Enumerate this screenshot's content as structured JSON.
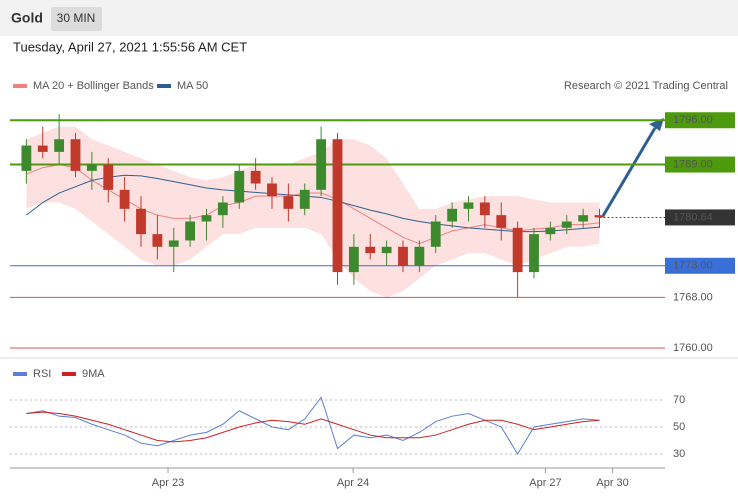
{
  "header": {
    "instrument": "Gold",
    "timeframe": "30 MIN",
    "timestamp": "Tuesday, April 27, 2021 1:55:56 AM CET"
  },
  "chart_data": [
    {
      "type": "candlestick",
      "legend": [
        {
          "name": "MA 20 + Bollinger Bands",
          "color": "#f08080"
        },
        {
          "name": "MA 50",
          "color": "#2f5f8f"
        }
      ],
      "credit": "Research © 2021 Trading Central",
      "x": [
        0,
        1,
        2,
        3,
        4,
        5,
        6,
        7,
        8,
        9,
        10,
        11,
        12,
        13,
        14,
        15,
        16,
        17,
        18,
        19,
        20,
        21,
        22,
        23,
        24,
        25,
        26,
        27,
        28,
        29,
        30,
        31,
        32,
        33,
        34,
        35
      ],
      "open": [
        1788,
        1792,
        1791,
        1793,
        1788,
        1789,
        1785,
        1782,
        1778,
        1776,
        1777,
        1780,
        1781,
        1783,
        1788,
        1786,
        1784,
        1782,
        1785,
        1793,
        1772,
        1776,
        1775,
        1776,
        1773,
        1776,
        1780,
        1782,
        1783,
        1781,
        1779,
        1772,
        1778,
        1779,
        1780,
        1781
      ],
      "high": [
        1793,
        1795,
        1797,
        1794,
        1791,
        1790,
        1787,
        1784,
        1781,
        1779,
        1781,
        1782,
        1784,
        1789,
        1790,
        1787,
        1786,
        1786,
        1795,
        1794,
        1778,
        1778,
        1777,
        1777,
        1777,
        1781,
        1783,
        1784,
        1784,
        1783,
        1780,
        1779,
        1780,
        1781,
        1782,
        1782
      ],
      "low": [
        1786,
        1790,
        1789,
        1787,
        1785,
        1783,
        1780,
        1776,
        1774,
        1772,
        1776,
        1777,
        1779,
        1782,
        1785,
        1782,
        1780,
        1781,
        1784,
        1770,
        1770,
        1774,
        1773,
        1772,
        1772,
        1775,
        1779,
        1780,
        1779,
        1777,
        1768,
        1771,
        1777,
        1778,
        1779,
        1779
      ],
      "close": [
        1792,
        1791,
        1793,
        1788,
        1789,
        1785,
        1782,
        1778,
        1776,
        1777,
        1780,
        1781,
        1783,
        1788,
        1786,
        1784,
        1782,
        1785,
        1793,
        1772,
        1776,
        1775,
        1776,
        1773,
        1776,
        1780,
        1782,
        1783,
        1781,
        1779,
        1772,
        1778,
        1779,
        1780,
        1781,
        1780.64
      ],
      "upper": [
        1793,
        1794,
        1795,
        1795,
        1793,
        1792,
        1791,
        1790,
        1789,
        1788,
        1787,
        1786.5,
        1787,
        1788,
        1789,
        1789,
        1789,
        1790,
        1791,
        1793,
        1793,
        1792,
        1790,
        1786,
        1782,
        1782,
        1783,
        1783.5,
        1784,
        1784,
        1784,
        1783.5,
        1783,
        1783,
        1783,
        1783
      ],
      "lower": [
        1782,
        1783,
        1783,
        1782,
        1780,
        1778,
        1776,
        1774,
        1773,
        1773,
        1774,
        1776,
        1778,
        1778,
        1779,
        1779,
        1779,
        1779,
        1778,
        1774,
        1771,
        1769,
        1768,
        1769,
        1771,
        1773,
        1774,
        1775,
        1775,
        1774,
        1773,
        1774,
        1775,
        1776,
        1776,
        1776.5
      ],
      "ma20": [
        1787.5,
        1788.5,
        1789,
        1788.5,
        1786.5,
        1785,
        1783.5,
        1782,
        1781,
        1780.5,
        1780.5,
        1781,
        1782.5,
        1783,
        1784,
        1784,
        1784,
        1784.5,
        1784.5,
        1783.5,
        1782,
        1780.5,
        1779,
        1777.5,
        1776.5,
        1777.5,
        1778.5,
        1779,
        1779.5,
        1779,
        1778.5,
        1778.8,
        1779,
        1779.5,
        1779.5,
        1779.8
      ],
      "ma50": [
        1781,
        1783,
        1784.5,
        1785.5,
        1786.5,
        1787,
        1787.3,
        1787.2,
        1786.8,
        1786.3,
        1785.8,
        1785.3,
        1785,
        1784.8,
        1784.6,
        1784.4,
        1784.2,
        1784,
        1783.8,
        1783.2,
        1782.5,
        1781.8,
        1781.2,
        1780.5,
        1780,
        1779.6,
        1779.3,
        1779,
        1778.8,
        1778.6,
        1778.4,
        1778.4,
        1778.5,
        1778.7,
        1778.9,
        1779.1
      ],
      "xlim": [
        -1,
        39
      ],
      "ylim": [
        1758.9,
        1799.2
      ],
      "yticks": [
        {
          "value": 1796,
          "label": "1796.00"
        },
        {
          "value": 1789,
          "label": "1789.00"
        },
        {
          "value": 1780.64,
          "label": "1780.64"
        },
        {
          "value": 1773,
          "label": "1773.00"
        },
        {
          "value": 1768,
          "label": "1768.00"
        },
        {
          "value": 1760,
          "label": "1760.00"
        }
      ],
      "ytick_colors": [
        "#4d9a0c",
        "#4d9a0c",
        "#333333",
        "#3a6fd8",
        "#d9534f",
        "#d9534f"
      ],
      "up_color": "#3d8a2e",
      "down_color": "#c0392b"
    },
    {
      "type": "line",
      "series": [
        {
          "name": "RSI",
          "color": "#5b7fd6",
          "values": [
            60,
            62,
            58,
            57,
            52,
            48,
            44,
            38,
            36,
            40,
            44,
            46,
            52,
            62,
            56,
            50,
            48,
            56,
            72,
            34,
            44,
            42,
            44,
            40,
            46,
            54,
            58,
            60,
            55,
            50,
            30,
            50,
            52,
            54,
            56,
            55
          ]
        },
        {
          "name": "9MA",
          "color": "#cc2222",
          "values": [
            60,
            61,
            60,
            58,
            55,
            52,
            48,
            44,
            40,
            39,
            40,
            42,
            46,
            50,
            53,
            55,
            54,
            52,
            56,
            52,
            48,
            44,
            42,
            42,
            42,
            44,
            48,
            52,
            55,
            55,
            52,
            48,
            50,
            52,
            54,
            55
          ]
        }
      ],
      "x": [
        0,
        1,
        2,
        3,
        4,
        5,
        6,
        7,
        8,
        9,
        10,
        11,
        12,
        13,
        14,
        15,
        16,
        17,
        18,
        19,
        20,
        21,
        22,
        23,
        24,
        25,
        26,
        27,
        28,
        29,
        30,
        31,
        32,
        33,
        34,
        35
      ],
      "xlim": [
        -1,
        39
      ],
      "ylim": [
        19.6,
        81.1
      ],
      "yticks": [
        30,
        50,
        70
      ],
      "xticks": [
        {
          "value": 8.65,
          "label": "Apr 23"
        },
        {
          "value": 19.95,
          "label": "Apr 24"
        },
        {
          "value": 31.7,
          "label": "Apr 27"
        },
        {
          "value": 35.8,
          "label": "Apr 30"
        }
      ]
    }
  ]
}
